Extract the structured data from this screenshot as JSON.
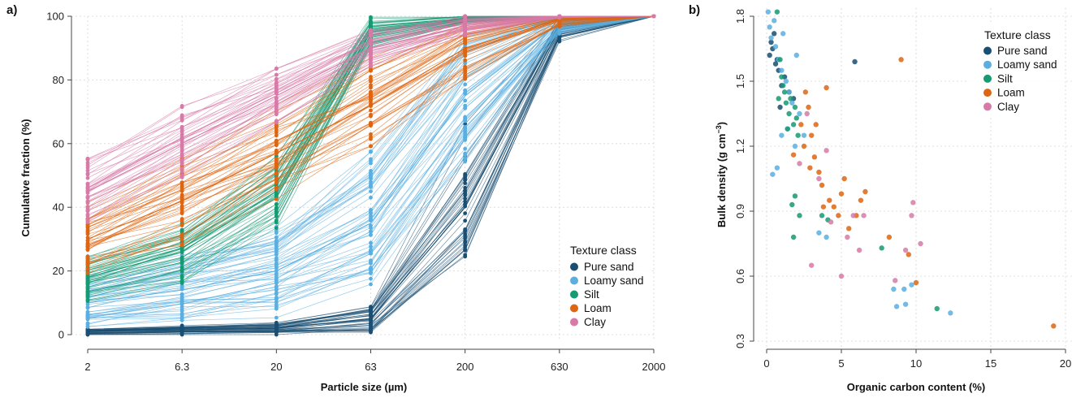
{
  "chart_data": [
    {
      "panel_label": "a)",
      "type": "line",
      "xlabel": "Particle size (µm)",
      "ylabel": "Cumulative fraction (%)",
      "x_scale": "log",
      "x_ticks": [
        "2",
        "6.3",
        "20",
        "63",
        "200",
        "630",
        "2000"
      ],
      "x": [
        2,
        6.3,
        20,
        63,
        200,
        630,
        2000
      ],
      "ylim": [
        0,
        100
      ],
      "y_ticks": [
        0,
        20,
        40,
        60,
        80,
        100
      ],
      "grid": true,
      "legend": {
        "title": "Texture class",
        "position": "bottom-right"
      },
      "series": [
        {
          "name": "Pure sand",
          "color": "#1a4e72",
          "values": [
            1,
            1.5,
            2,
            5,
            40,
            96,
            100
          ]
        },
        {
          "name": "Loamy sand",
          "color": "#5aafe0",
          "values": [
            10,
            14,
            20,
            35,
            75,
            98,
            100
          ]
        },
        {
          "name": "Silt",
          "color": "#159a72",
          "values": [
            18,
            26,
            45,
            95,
            99,
            100,
            100
          ]
        },
        {
          "name": "Loam",
          "color": "#de6511",
          "values": [
            30,
            42,
            57,
            72,
            90,
            99,
            100
          ]
        },
        {
          "name": "Clay",
          "color": "#d77aa7",
          "values": [
            45,
            60,
            75,
            90,
            97,
            100,
            100
          ]
        }
      ]
    },
    {
      "panel_label": "b)",
      "type": "scatter",
      "xlabel": "Organic carbon content (%)",
      "ylabel_main": "Bulk density (g cm",
      "ylabel_sup": "−3",
      "ylabel_end": ")",
      "xlim": [
        0,
        20
      ],
      "x_ticks": [
        "0",
        "5",
        "10",
        "15",
        "20"
      ],
      "ylim": [
        0.3,
        1.8
      ],
      "y_ticks": [
        "0.3",
        "0.6",
        "0.9",
        "1.2",
        "1.5",
        "1.8"
      ],
      "grid": true,
      "legend": {
        "title": "Texture class",
        "position": "top-right"
      },
      "series": [
        {
          "name": "Pure sand",
          "color": "#1a4e72",
          "points": [
            [
              0.2,
              1.62
            ],
            [
              0.3,
              1.68
            ],
            [
              0.5,
              1.72
            ],
            [
              0.6,
              1.58
            ],
            [
              0.8,
              1.55
            ],
            [
              1.0,
              1.48
            ],
            [
              1.2,
              1.52
            ],
            [
              0.4,
              1.65
            ],
            [
              0.7,
              1.6
            ],
            [
              1.5,
              1.45
            ],
            [
              5.9,
              1.59
            ],
            [
              0.9,
              1.38
            ],
            [
              1.8,
              1.42
            ]
          ]
        },
        {
          "name": "Loamy sand",
          "color": "#5aafe0",
          "points": [
            [
              0.1,
              1.82
            ],
            [
              0.2,
              1.75
            ],
            [
              0.3,
              1.7
            ],
            [
              0.5,
              1.78
            ],
            [
              0.6,
              1.66
            ],
            [
              0.8,
              1.6
            ],
            [
              1.0,
              1.55
            ],
            [
              1.1,
              1.72
            ],
            [
              1.3,
              1.5
            ],
            [
              1.5,
              1.45
            ],
            [
              1.7,
              1.4
            ],
            [
              2.0,
              1.62
            ],
            [
              2.2,
              1.35
            ],
            [
              0.4,
              1.07
            ],
            [
              1.9,
              1.2
            ],
            [
              2.5,
              1.25
            ],
            [
              3.5,
              0.8
            ],
            [
              4.0,
              0.78
            ],
            [
              8.5,
              0.54
            ],
            [
              9.2,
              0.54
            ],
            [
              9.7,
              0.56
            ],
            [
              12.3,
              0.43
            ],
            [
              8.7,
              0.46
            ],
            [
              9.3,
              0.47
            ],
            [
              1.0,
              1.25
            ],
            [
              0.7,
              1.1
            ],
            [
              1.4,
              1.28
            ]
          ]
        },
        {
          "name": "Silt",
          "color": "#159a72",
          "points": [
            [
              0.7,
              1.82
            ],
            [
              0.9,
              1.6
            ],
            [
              1.0,
              1.52
            ],
            [
              1.2,
              1.45
            ],
            [
              1.3,
              1.4
            ],
            [
              1.5,
              1.35
            ],
            [
              1.6,
              1.42
            ],
            [
              1.8,
              1.3
            ],
            [
              1.9,
              1.38
            ],
            [
              2.0,
              1.33
            ],
            [
              2.1,
              1.25
            ],
            [
              1.4,
              1.28
            ],
            [
              1.7,
              0.93
            ],
            [
              1.9,
              0.97
            ],
            [
              1.8,
              0.78
            ],
            [
              2.2,
              0.88
            ],
            [
              3.7,
              0.88
            ],
            [
              4.1,
              0.86
            ],
            [
              7.7,
              0.73
            ],
            [
              11.4,
              0.45
            ],
            [
              1.1,
              1.48
            ],
            [
              0.8,
              1.42
            ]
          ]
        },
        {
          "name": "Loam",
          "color": "#de6511",
          "points": [
            [
              2.3,
              1.3
            ],
            [
              2.6,
              1.45
            ],
            [
              2.8,
              1.38
            ],
            [
              3.0,
              1.25
            ],
            [
              3.2,
              1.15
            ],
            [
              3.5,
              1.08
            ],
            [
              3.7,
              1.02
            ],
            [
              4.0,
              1.47
            ],
            [
              4.2,
              0.95
            ],
            [
              4.5,
              0.92
            ],
            [
              4.8,
              0.88
            ],
            [
              5.2,
              1.05
            ],
            [
              5.5,
              0.82
            ],
            [
              6.0,
              0.88
            ],
            [
              6.3,
              0.95
            ],
            [
              6.6,
              0.99
            ],
            [
              2.5,
              1.2
            ],
            [
              2.9,
              1.1
            ],
            [
              3.3,
              1.3
            ],
            [
              9.0,
              1.6
            ],
            [
              10.0,
              0.57
            ],
            [
              19.2,
              0.37
            ],
            [
              9.5,
              0.7
            ],
            [
              8.2,
              0.78
            ],
            [
              1.8,
              1.16
            ],
            [
              3.8,
              0.92
            ],
            [
              5.0,
              0.98
            ]
          ]
        },
        {
          "name": "Clay",
          "color": "#d77aa7",
          "points": [
            [
              2.7,
              1.35
            ],
            [
              3.0,
              0.65
            ],
            [
              3.5,
              1.05
            ],
            [
              4.3,
              0.85
            ],
            [
              5.0,
              0.6
            ],
            [
              5.4,
              0.78
            ],
            [
              5.8,
              0.88
            ],
            [
              6.5,
              0.88
            ],
            [
              8.6,
              0.58
            ],
            [
              9.8,
              0.94
            ],
            [
              9.7,
              0.88
            ],
            [
              10.3,
              0.75
            ],
            [
              9.3,
              0.72
            ],
            [
              4.0,
              1.18
            ],
            [
              2.2,
              1.12
            ],
            [
              6.2,
              0.72
            ]
          ]
        }
      ]
    }
  ]
}
